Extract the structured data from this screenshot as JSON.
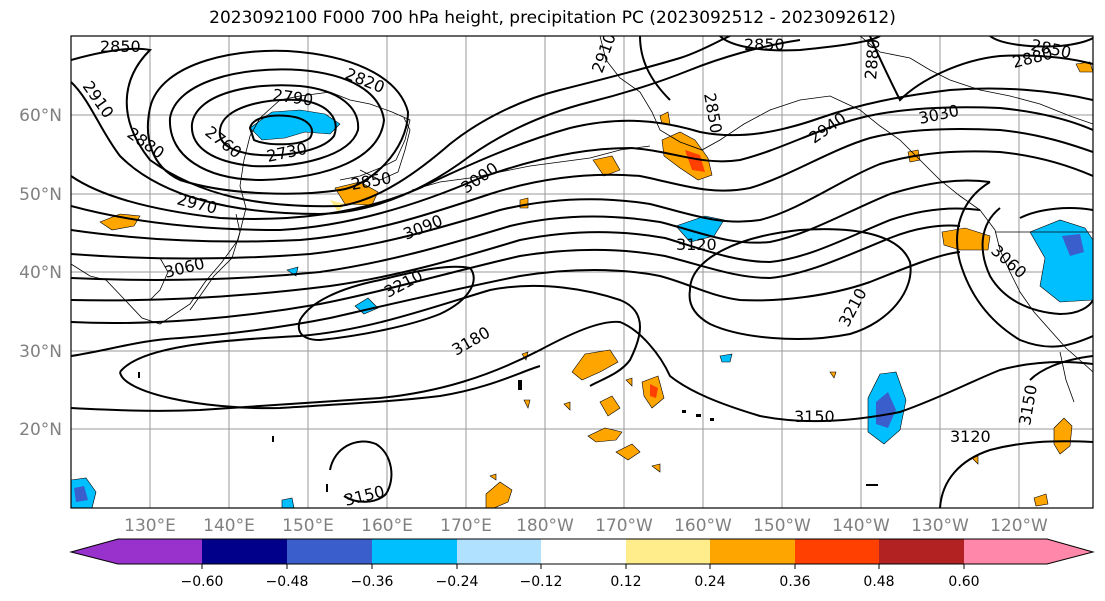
{
  "title": "2023092100 F000 700 hPa height, precipitation PC (2023092512 - 2023092612)",
  "map": {
    "lon_labels": [
      "130°E",
      "140°E",
      "150°E",
      "160°E",
      "170°E",
      "180°W",
      "170°W",
      "160°W",
      "150°W",
      "140°W",
      "130°W",
      "120°W"
    ],
    "lat_labels": [
      "60°N",
      "50°N",
      "40°N",
      "30°N",
      "20°N"
    ],
    "contour_labels": [
      {
        "id": "c2850a",
        "text": "2850"
      },
      {
        "id": "c2910a",
        "text": "2910"
      },
      {
        "id": "c2880a",
        "text": "2880"
      },
      {
        "id": "c2790",
        "text": "2790"
      },
      {
        "id": "c2820",
        "text": "2820"
      },
      {
        "id": "c2760",
        "text": "2760"
      },
      {
        "id": "c2730",
        "text": "2730"
      },
      {
        "id": "c2850b",
        "text": "2850"
      },
      {
        "id": "c2970",
        "text": "2970"
      },
      {
        "id": "c3000",
        "text": "3000"
      },
      {
        "id": "c3090",
        "text": "3090"
      },
      {
        "id": "c3060a",
        "text": "3060"
      },
      {
        "id": "c3210a",
        "text": "3210"
      },
      {
        "id": "c3180",
        "text": "3180"
      },
      {
        "id": "c2910b",
        "text": "2910"
      },
      {
        "id": "c2850c",
        "text": "2850"
      },
      {
        "id": "c2850d",
        "text": "2850"
      },
      {
        "id": "c2880b",
        "text": "2880"
      },
      {
        "id": "c3120a",
        "text": "3120"
      },
      {
        "id": "c2940",
        "text": "2940"
      },
      {
        "id": "c3030",
        "text": "3030"
      },
      {
        "id": "c2880c",
        "text": "2880"
      },
      {
        "id": "c2850e",
        "text": "2850"
      },
      {
        "id": "c3060b",
        "text": "3060"
      },
      {
        "id": "c3210b",
        "text": "3210"
      },
      {
        "id": "c3150a",
        "text": "3150"
      },
      {
        "id": "c3150b",
        "text": "3150"
      },
      {
        "id": "c3120b",
        "text": "3120"
      },
      {
        "id": "c3150c",
        "text": "3150"
      }
    ]
  },
  "colorbar": {
    "tick_labels": [
      "−0.60",
      "−0.48",
      "−0.36",
      "−0.24",
      "−0.12",
      "0.12",
      "0.24",
      "0.36",
      "0.48",
      "0.60"
    ],
    "colors": [
      "#9932cc",
      "#00008b",
      "#3a5fcd",
      "#00bfff",
      "#b0e2ff",
      "#ffffff",
      "#ffec8b",
      "#ffa500",
      "#ff4000",
      "#b22222",
      "#ff88aa"
    ]
  },
  "legend_colors": {
    "light_blue": "#b0e2ff",
    "sky": "#00bfff",
    "mid_blue": "#3a5fcd",
    "navy": "#00008b",
    "light_yellow": "#ffec8b",
    "orange": "#ffa500",
    "red_orange": "#ff4000",
    "dark_red": "#b22222",
    "pink": "#ff88aa",
    "purple": "#9932cc"
  }
}
